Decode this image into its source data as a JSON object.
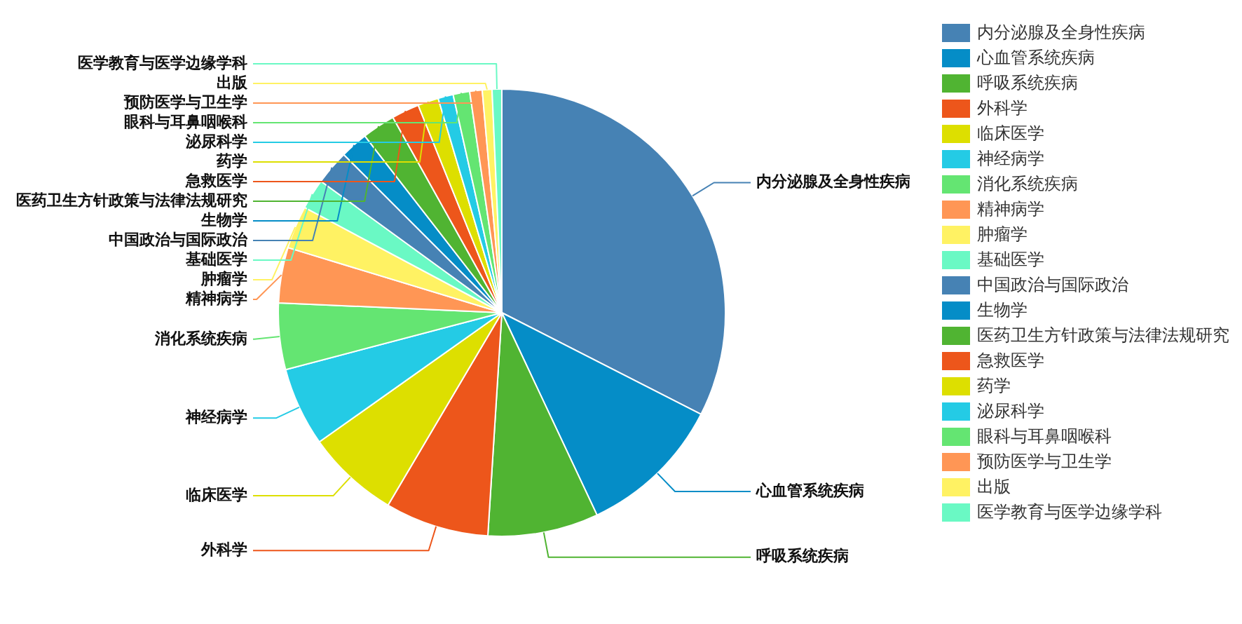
{
  "chart_data": {
    "type": "pie",
    "legend": "right",
    "categories": [
      "内分泌腺及全身性疾病",
      "心血管系统疾病",
      "呼吸系统疾病",
      "外科学",
      "临床医学",
      "神经病学",
      "消化系统疾病",
      "精神病学",
      "肿瘤学",
      "基础医学",
      "中国政治与国际政治",
      "生物学",
      "医药卫生方针政策与法律法规研究",
      "急救医学",
      "药学",
      "泌尿科学",
      "眼科与耳鼻咽喉科",
      "预防医学与卫生学",
      "出版",
      "医学教育与医学边缘学科"
    ],
    "values": [
      32.5,
      10.5,
      8,
      7.5,
      6.7,
      5.7,
      4.8,
      4,
      3.1,
      2.2,
      2.5,
      2,
      2.4,
      2,
      1.5,
      1.1,
      1.2,
      0.9,
      0.7,
      0.7
    ],
    "colors": [
      "#4682b4",
      "#058dc7",
      "#50b432",
      "#ed561b",
      "#dddf00",
      "#24cbe5",
      "#64e572",
      "#ff9655",
      "#fff263",
      "#6af9c4",
      "#4682b4",
      "#058dc7",
      "#50b432",
      "#ed561b",
      "#dddf00",
      "#24cbe5",
      "#64e572",
      "#ff9655",
      "#fff263",
      "#6af9c4"
    ]
  }
}
